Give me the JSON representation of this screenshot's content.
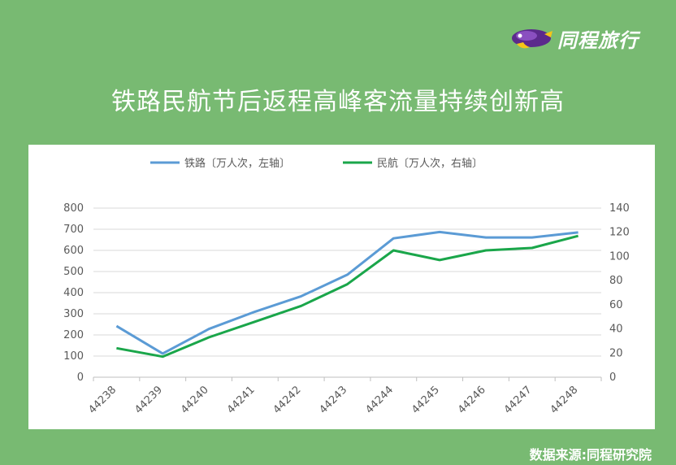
{
  "brand": {
    "name": "同程旅行",
    "logo_icon": "tongcheng-bird-logo-icon"
  },
  "header": {
    "title": "铁路民航节后返程高峰客流量持续创新高"
  },
  "footer": {
    "source": "数据来源:同程研究院"
  },
  "chart_data": {
    "type": "line",
    "title": "铁路民航节后返程高峰客流量持续创新高",
    "categories": [
      "44238",
      "44239",
      "44240",
      "44241",
      "44242",
      "44243",
      "44244",
      "44245",
      "44246",
      "44247",
      "44248"
    ],
    "series": [
      {
        "name": "铁路〔万人次，左轴〕",
        "axis": "left",
        "color": "#5b9bd5",
        "values": [
          242,
          112,
          228,
          310,
          383,
          485,
          657,
          687,
          661,
          661,
          685
        ]
      },
      {
        "name": "民航〔万人次，右轴〕",
        "axis": "right",
        "color": "#1aa64a",
        "values": [
          24,
          17,
          33,
          46,
          59,
          77,
          105,
          97,
          105,
          107,
          117
        ]
      }
    ],
    "y_left": {
      "min": 0,
      "max": 800,
      "ticks": [
        0,
        100,
        200,
        300,
        400,
        500,
        600,
        700,
        800
      ]
    },
    "y_right": {
      "min": 0,
      "max": 140,
      "ticks": [
        0,
        20,
        40,
        60,
        80,
        100,
        120,
        140
      ]
    },
    "grid": true,
    "legend_position": "top-center"
  }
}
